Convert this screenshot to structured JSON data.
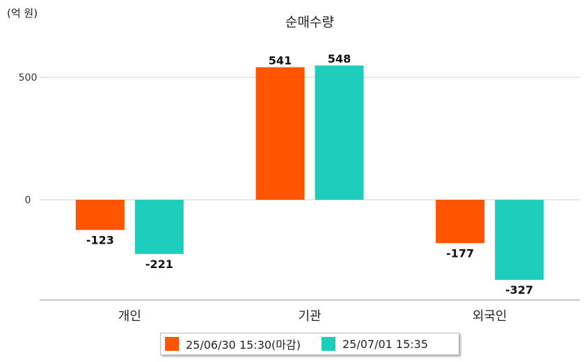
{
  "chart_data": {
    "type": "bar",
    "title": "순매수량",
    "unit_label": "(억 원)",
    "categories": [
      "개인",
      "기관",
      "외국인"
    ],
    "series": [
      {
        "name": "25/06/30 15:30(마감)",
        "color": "#ff5400",
        "values": [
          -123,
          541,
          -177
        ]
      },
      {
        "name": "25/07/01 15:35",
        "color": "#1ecdbb",
        "values": [
          -221,
          548,
          -327
        ]
      }
    ],
    "yticks": [
      0,
      500
    ],
    "ylim": [
      -400,
      650
    ],
    "grid": true,
    "legend": "bottom"
  }
}
